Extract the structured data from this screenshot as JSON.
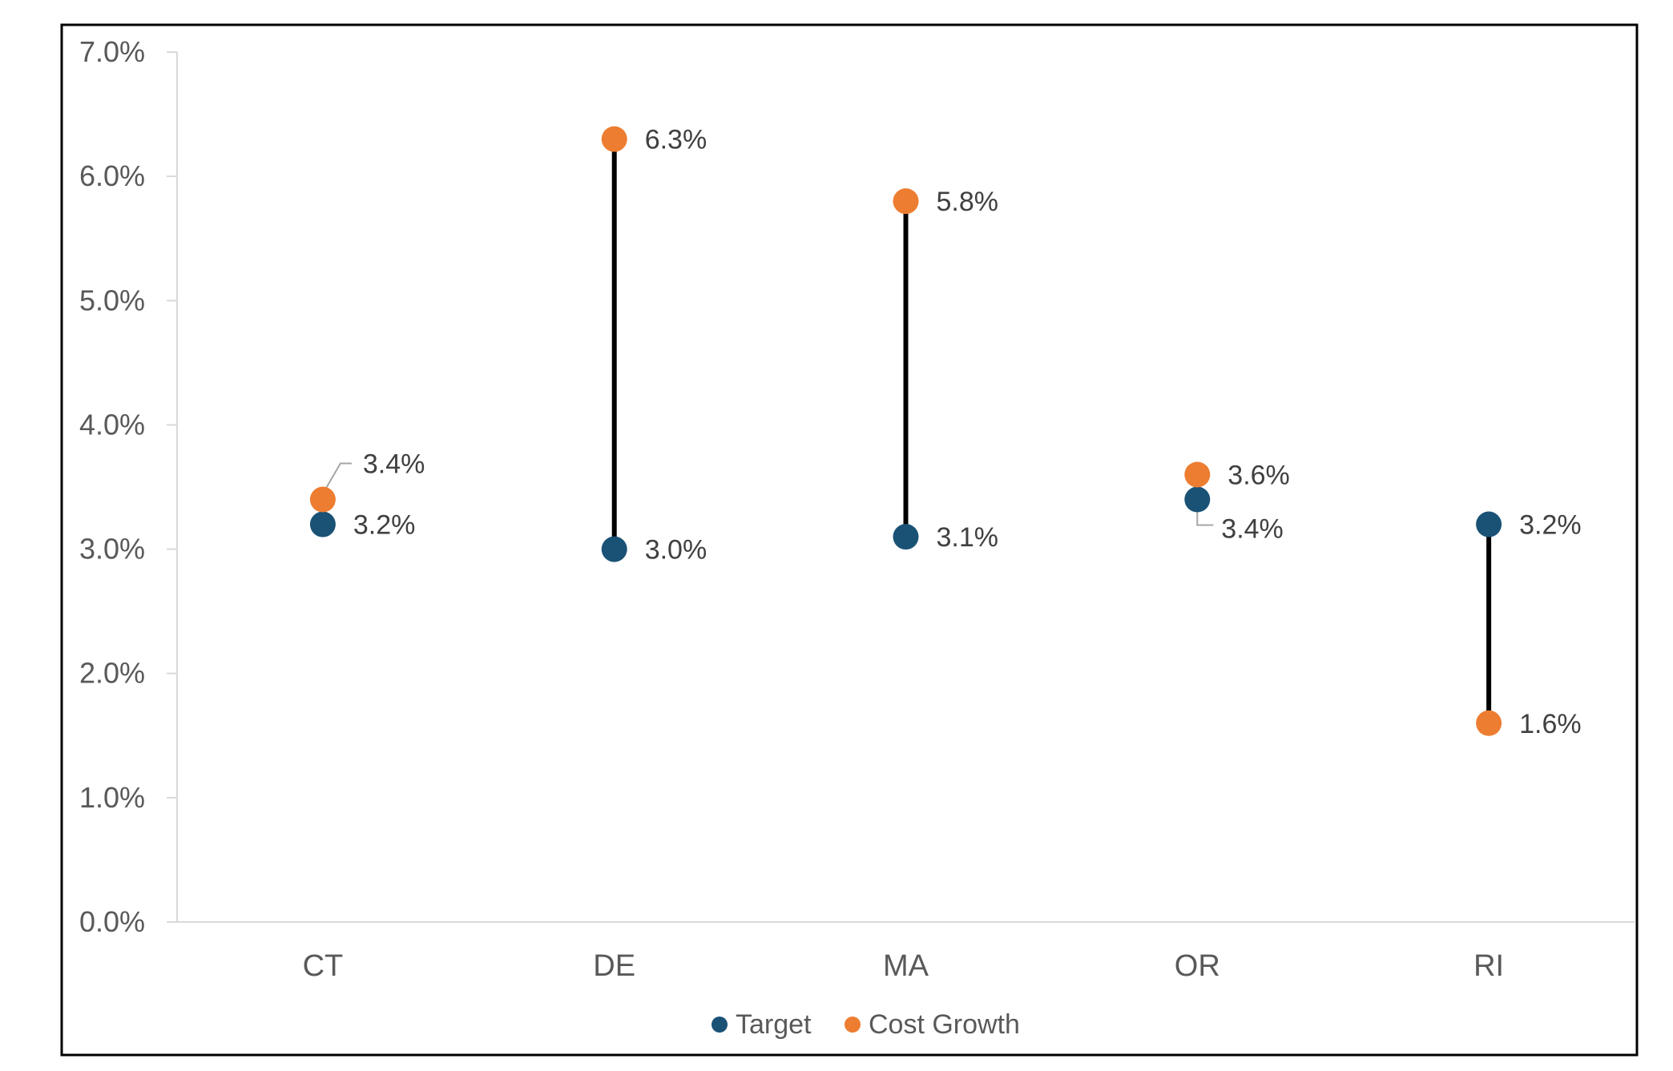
{
  "colors": {
    "target": "#1a5276",
    "cost_growth": "#ed7d31",
    "connector": "#000000",
    "axis": "#d9d9d9",
    "frame": "#000000",
    "text": "#595959"
  },
  "chart_data": {
    "type": "scatter",
    "subtype": "dumbbell",
    "title": "",
    "xlabel": "",
    "ylabel": "",
    "categories": [
      "CT",
      "DE",
      "MA",
      "OR",
      "RI"
    ],
    "ylim": [
      0,
      0.07
    ],
    "y_ticks": [
      0,
      0.01,
      0.02,
      0.03,
      0.04,
      0.05,
      0.06,
      0.07
    ],
    "y_tick_labels": [
      "0.0%",
      "1.0%",
      "2.0%",
      "3.0%",
      "4.0%",
      "5.0%",
      "6.0%",
      "7.0%"
    ],
    "grid": false,
    "legend_position": "bottom",
    "series": [
      {
        "name": "Target",
        "values": [
          0.032,
          0.03,
          0.031,
          0.034,
          0.032
        ],
        "labels": [
          "3.2%",
          "3.0%",
          "3.1%",
          "3.4%",
          "3.2%"
        ]
      },
      {
        "name": "Cost Growth",
        "values": [
          0.034,
          0.063,
          0.058,
          0.036,
          0.016
        ],
        "labels": [
          "3.4%",
          "6.3%",
          "5.8%",
          "3.6%",
          "1.6%"
        ]
      }
    ]
  }
}
